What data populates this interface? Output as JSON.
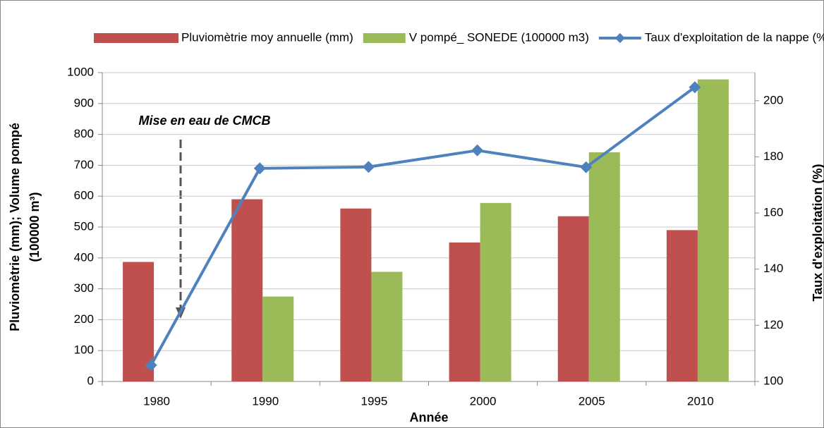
{
  "chart_data": {
    "type": "bar",
    "categories": [
      "1980",
      "1990",
      "1995",
      "2000",
      "2005",
      "2010"
    ],
    "series": [
      {
        "name": "Pluviomètrie moy annuelle (mm)",
        "color": "#c0504d",
        "values": [
          387,
          590,
          560,
          450,
          535,
          490
        ]
      },
      {
        "name": "V pompé_ SONEDE (100000 m3)",
        "color": "#9bbb59",
        "values": [
          null,
          275,
          355,
          578,
          742,
          978
        ]
      },
      {
        "name": "Taux d'exploitation de la nappe (%)",
        "color": "#4f81bd",
        "type": "line",
        "axis": "y2",
        "values": [
          105.8,
          175.9,
          176.4,
          182.3,
          176.3,
          204.8
        ]
      }
    ],
    "ylim": [
      0,
      1000
    ],
    "yticks": [
      0,
      100,
      200,
      300,
      400,
      500,
      600,
      700,
      800,
      900,
      1000
    ],
    "y2lim": [
      100,
      210
    ],
    "y2ticks": [
      100,
      120,
      140,
      160,
      180,
      200
    ],
    "ylabel": [
      "Pluviomètrie (mm); Volume pompé",
      "(100000 m³)"
    ],
    "y2label": "Taux d'exploitation (%)",
    "xlabel": "Année",
    "annotation": "Mise en eau de CMCB",
    "grid": true,
    "legend": "top"
  }
}
